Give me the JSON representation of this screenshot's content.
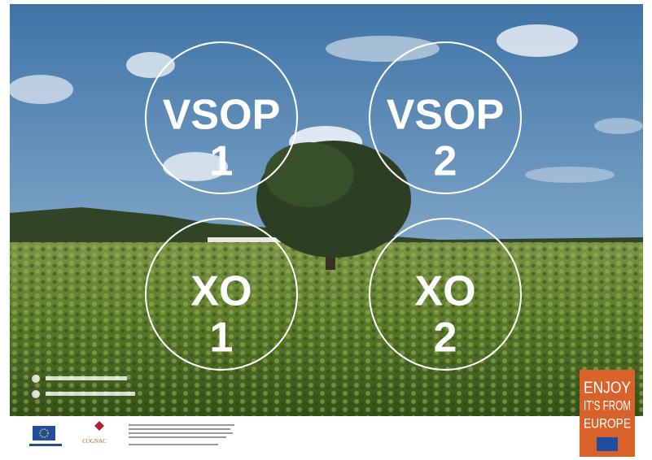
{
  "circles": [
    {
      "line1": "VSOP",
      "line2": "1"
    },
    {
      "line1": "VSOP",
      "line2": "2"
    },
    {
      "line1": "XO",
      "line2": "1"
    },
    {
      "line1": "XO",
      "line2": "2"
    }
  ],
  "badge": {
    "lines": [
      "ENJOY",
      "IT'S FROM",
      "EUROPE"
    ]
  },
  "footer": {
    "logo": "COGNAC"
  }
}
